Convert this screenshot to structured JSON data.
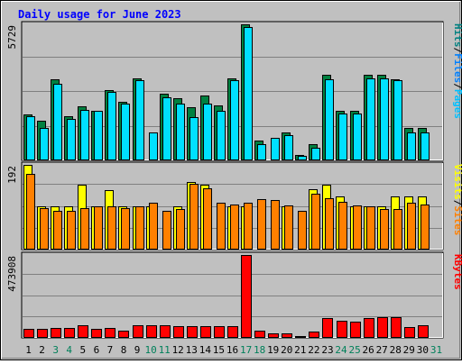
{
  "chart_data": [
    {
      "type": "bar",
      "panel": "pages-files-hits",
      "title": "Daily usage for June 2023",
      "categories": [
        "1",
        "2",
        "3",
        "4",
        "5",
        "6",
        "7",
        "8",
        "9",
        "10",
        "11",
        "12",
        "13",
        "14",
        "15",
        "16",
        "17",
        "18",
        "19",
        "20",
        "21",
        "22",
        "23",
        "24",
        "25",
        "26",
        "27",
        "28",
        "29",
        "30",
        "31"
      ],
      "weekend_days": [
        "3",
        "4",
        "10",
        "11",
        "17",
        "18",
        "24",
        "25",
        "31"
      ],
      "ymax_label": "5729",
      "ylim": [
        0,
        5729
      ],
      "grid": true,
      "side_labels": [
        "Pages",
        "Files",
        "Hits"
      ],
      "series": [
        {
          "name": "Hits",
          "color": "#008040",
          "values": [
            1900,
            1650,
            3400,
            1850,
            2250,
            2050,
            2950,
            2450,
            3450,
            0,
            2800,
            2600,
            2200,
            2700,
            2300,
            3450,
            5729,
            800,
            0,
            1150,
            200,
            650,
            3600,
            2050,
            2050,
            3600,
            3600,
            3400,
            1350,
            1350,
            0
          ]
        },
        {
          "name": "Files",
          "color": "#00e0ff",
          "values": [
            1850,
            1350,
            3200,
            1700,
            2100,
            2050,
            2850,
            2350,
            3350,
            1150,
            2650,
            2350,
            1800,
            2350,
            2050,
            3350,
            5600,
            650,
            900,
            1050,
            150,
            500,
            3400,
            1950,
            1950,
            3450,
            3450,
            3350,
            1150,
            1150,
            0
          ]
        },
        {
          "name": "Pages",
          "color": "#00c0ff",
          "values": [
            0,
            0,
            0,
            0,
            0,
            0,
            0,
            0,
            0,
            0,
            0,
            0,
            0,
            0,
            0,
            0,
            0,
            0,
            0,
            0,
            0,
            0,
            0,
            0,
            0,
            0,
            0,
            0,
            0,
            0,
            0
          ]
        }
      ]
    },
    {
      "type": "bar",
      "panel": "visits-sites",
      "ymax_label": "192",
      "ylim": [
        0,
        192
      ],
      "grid": true,
      "side_labels": [
        "Sites",
        "Visits"
      ],
      "series": [
        {
          "name": "Visits",
          "color": "#ffff00",
          "values": [
            192,
            96,
            96,
            96,
            146,
            96,
            134,
            96,
            96,
            96,
            0,
            96,
            153,
            146,
            0,
            96,
            96,
            0,
            0,
            96,
            0,
            137,
            146,
            120,
            96,
            96,
            96,
            120,
            120,
            120,
            0
          ]
        },
        {
          "name": "Sites",
          "color": "#ff8000",
          "values": [
            172,
            93,
            87,
            86,
            93,
            96,
            98,
            93,
            96,
            105,
            86,
            90,
            148,
            138,
            106,
            101,
            106,
            113,
            111,
            100,
            86,
            125,
            115,
            108,
            100,
            96,
            90,
            91,
            105,
            101,
            0
          ]
        }
      ]
    },
    {
      "type": "bar",
      "panel": "kbytes",
      "ymax_label": "473908",
      "ylim": [
        0,
        473908
      ],
      "grid": true,
      "side_labels": [
        "KBytes"
      ],
      "series": [
        {
          "name": "KBytes",
          "color": "#ff0000",
          "values": [
            45000,
            45000,
            54000,
            54000,
            67000,
            47000,
            50000,
            38000,
            67000,
            67000,
            67000,
            63000,
            63000,
            63000,
            63000,
            63000,
            473908,
            39000,
            20000,
            20000,
            6000,
            32000,
            110000,
            94000,
            91000,
            110000,
            115000,
            115000,
            55000,
            67000,
            0
          ]
        }
      ]
    }
  ]
}
